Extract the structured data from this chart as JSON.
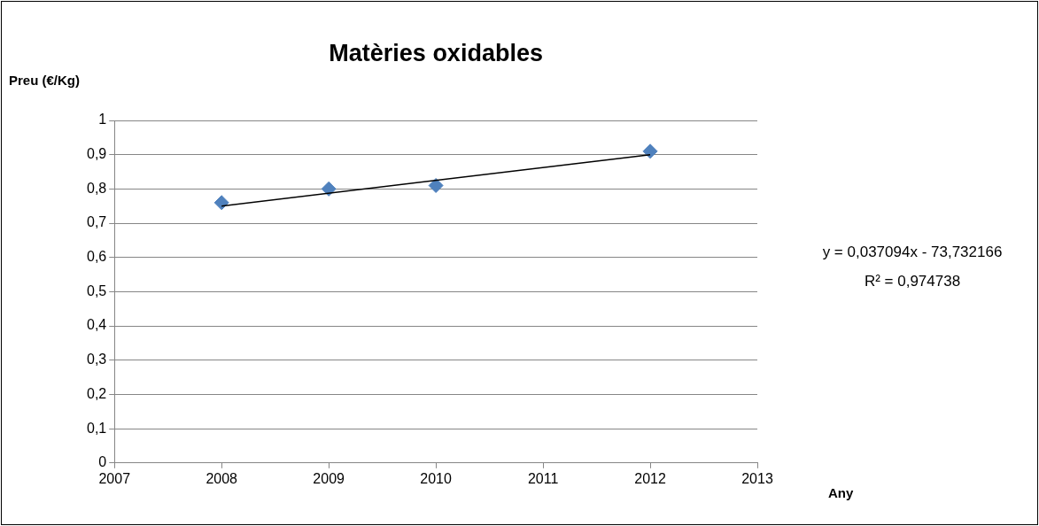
{
  "chart_data": {
    "type": "scatter",
    "title": "Matèries oxidables",
    "xlabel": "Any",
    "ylabel": "Preu (€/Kg)",
    "xlim": [
      2007,
      2013
    ],
    "xticks": [
      2007,
      2008,
      2009,
      2010,
      2011,
      2012,
      2013
    ],
    "ylim": [
      0,
      1
    ],
    "yticks": [
      0,
      {
        "value": 0.1,
        "label": "0,1"
      },
      {
        "value": 0.2,
        "label": "0,2"
      },
      {
        "value": 0.3,
        "label": "0,3"
      },
      {
        "value": 0.4,
        "label": "0,4"
      },
      {
        "value": 0.5,
        "label": "0,5"
      },
      {
        "value": 0.6,
        "label": "0,6"
      },
      {
        "value": 0.7,
        "label": "0,7"
      },
      {
        "value": 0.8,
        "label": "0,8"
      },
      {
        "value": 0.9,
        "label": "0,9"
      },
      1
    ],
    "grid": "y",
    "legend": false,
    "marker": "diamond",
    "series": [
      {
        "type": "scatter",
        "color": "#4f81bd",
        "x": [
          2008,
          2009,
          2010,
          2012
        ],
        "values": [
          0.76,
          0.8,
          0.81,
          0.91
        ]
      },
      {
        "type": "line",
        "color": "#000000",
        "x": [
          2008,
          2012
        ],
        "values": [
          0.75,
          0.9
        ],
        "marker": "none"
      }
    ],
    "annotations": [
      "y = 0,037094x - 73,732166",
      "R² = 0,974738"
    ]
  }
}
